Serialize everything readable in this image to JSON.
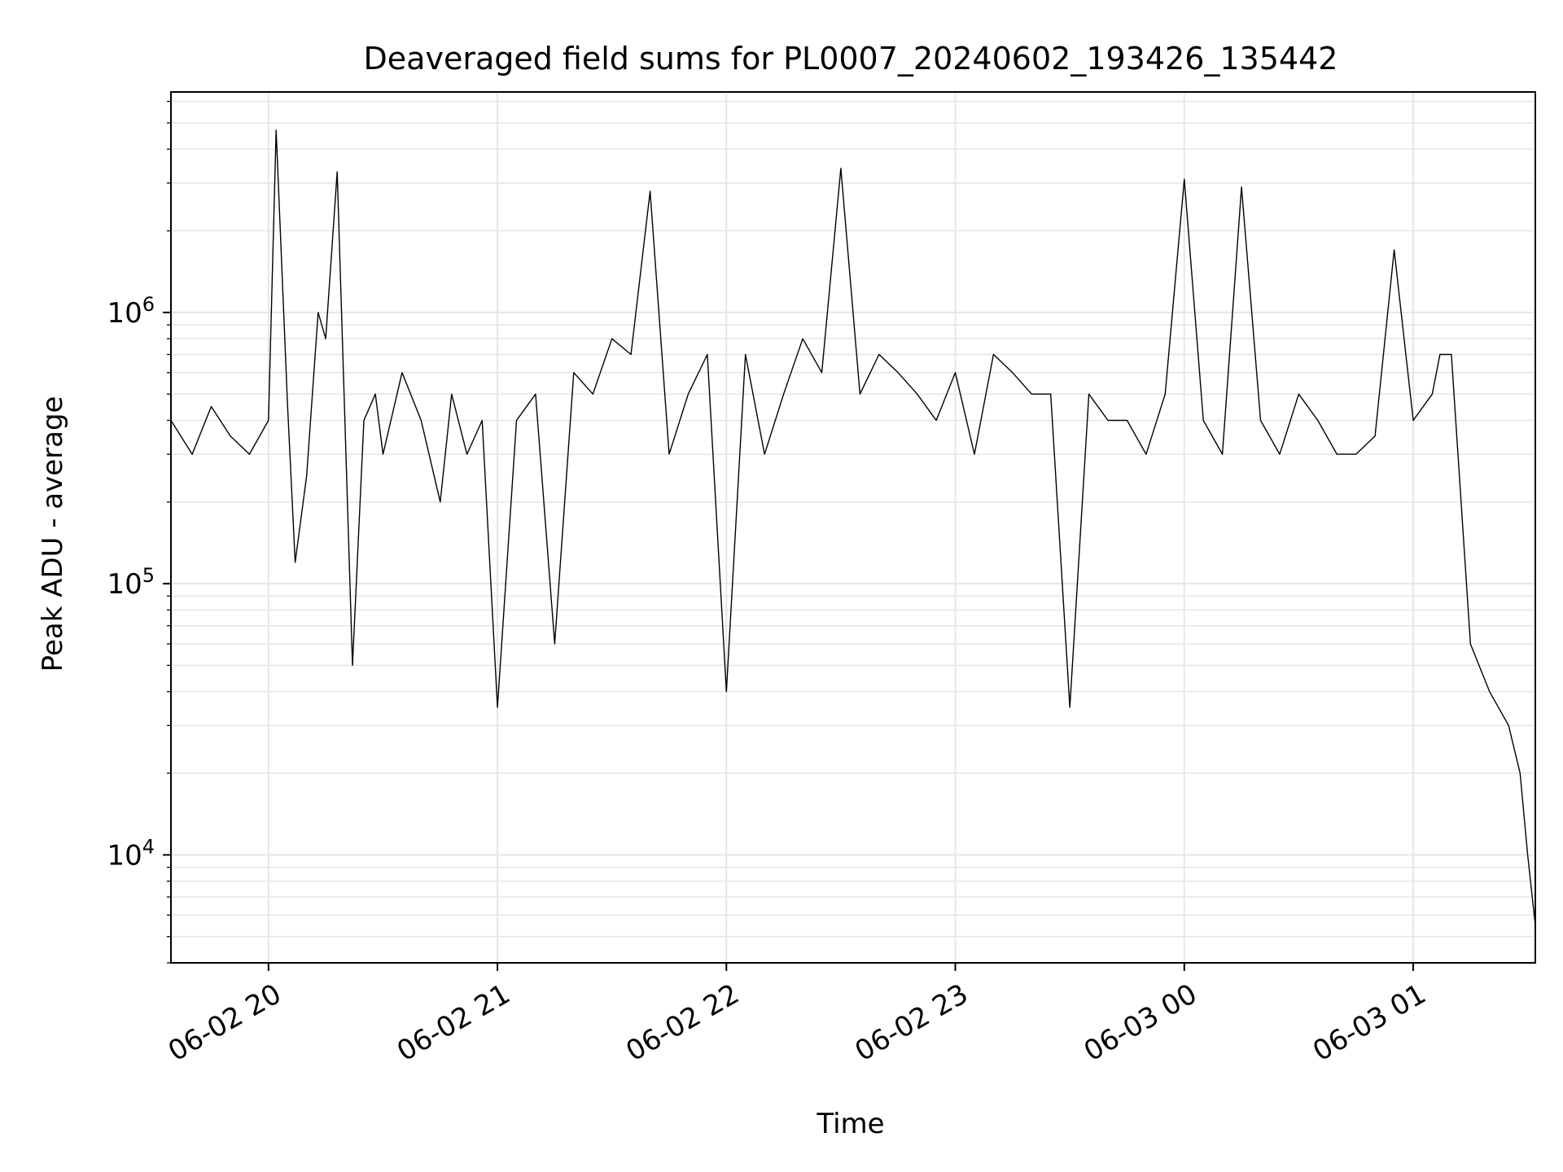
{
  "chart_data": {
    "type": "line",
    "title": "Deaveraged field sums for PL0007_20240602_193426_135442",
    "xlabel": "Time",
    "ylabel": "Peak ADU - average",
    "yscale": "log",
    "ylim": [
      4000,
      6500000
    ],
    "xlim": [
      "2024-06-02 19:34:26",
      "2024-06-03 01:32:00"
    ],
    "x_ticks": [
      {
        "label": "06-02 20",
        "time": "2024-06-02 20:00"
      },
      {
        "label": "06-02 21",
        "time": "2024-06-02 21:00"
      },
      {
        "label": "06-02 22",
        "time": "2024-06-02 22:00"
      },
      {
        "label": "06-02 23",
        "time": "2024-06-02 23:00"
      },
      {
        "label": "06-03 00",
        "time": "2024-06-03 00:00"
      },
      {
        "label": "06-03 01",
        "time": "2024-06-03 01:00"
      }
    ],
    "y_ticks": [
      {
        "base": "10",
        "exp": "4",
        "value": 10000
      },
      {
        "base": "10",
        "exp": "5",
        "value": 100000
      },
      {
        "base": "10",
        "exp": "6",
        "value": 1000000
      }
    ],
    "grid": true,
    "line_color": "#000000",
    "grid_color": "#e6e6e6",
    "series": [
      {
        "x": [
          "2024-06-02 19:34",
          "2024-06-02 19:40",
          "2024-06-02 19:45",
          "2024-06-02 19:50",
          "2024-06-02 19:55",
          "2024-06-02 20:00",
          "2024-06-02 20:02",
          "2024-06-02 20:05",
          "2024-06-02 20:07",
          "2024-06-02 20:10",
          "2024-06-02 20:13",
          "2024-06-02 20:15",
          "2024-06-02 20:18",
          "2024-06-02 20:22",
          "2024-06-02 20:25",
          "2024-06-02 20:28",
          "2024-06-02 20:30",
          "2024-06-02 20:35",
          "2024-06-02 20:40",
          "2024-06-02 20:45",
          "2024-06-02 20:48",
          "2024-06-02 20:52",
          "2024-06-02 20:56",
          "2024-06-02 21:00",
          "2024-06-02 21:05",
          "2024-06-02 21:10",
          "2024-06-02 21:15",
          "2024-06-02 21:20",
          "2024-06-02 21:25",
          "2024-06-02 21:30",
          "2024-06-02 21:35",
          "2024-06-02 21:40",
          "2024-06-02 21:45",
          "2024-06-02 21:50",
          "2024-06-02 21:55",
          "2024-06-02 22:00",
          "2024-06-02 22:05",
          "2024-06-02 22:10",
          "2024-06-02 22:15",
          "2024-06-02 22:20",
          "2024-06-02 22:25",
          "2024-06-02 22:30",
          "2024-06-02 22:35",
          "2024-06-02 22:40",
          "2024-06-02 22:45",
          "2024-06-02 22:50",
          "2024-06-02 22:55",
          "2024-06-02 23:00",
          "2024-06-02 23:05",
          "2024-06-02 23:10",
          "2024-06-02 23:15",
          "2024-06-02 23:20",
          "2024-06-02 23:25",
          "2024-06-02 23:30",
          "2024-06-02 23:35",
          "2024-06-02 23:40",
          "2024-06-02 23:45",
          "2024-06-02 23:50",
          "2024-06-02 23:55",
          "2024-06-03 00:00",
          "2024-06-03 00:05",
          "2024-06-03 00:10",
          "2024-06-03 00:15",
          "2024-06-03 00:20",
          "2024-06-03 00:25",
          "2024-06-03 00:30",
          "2024-06-03 00:35",
          "2024-06-03 00:40",
          "2024-06-03 00:45",
          "2024-06-03 00:50",
          "2024-06-03 00:55",
          "2024-06-03 01:00",
          "2024-06-03 01:05",
          "2024-06-03 01:07",
          "2024-06-03 01:10",
          "2024-06-03 01:15",
          "2024-06-03 01:20",
          "2024-06-03 01:25",
          "2024-06-03 01:28",
          "2024-06-03 01:30",
          "2024-06-03 01:32"
        ],
        "y": [
          400000,
          300000,
          450000,
          350000,
          300000,
          400000,
          4700000,
          450000,
          120000,
          250000,
          1000000,
          800000,
          3300000,
          50000,
          400000,
          500000,
          300000,
          600000,
          400000,
          200000,
          500000,
          300000,
          400000,
          35000,
          400000,
          500000,
          60000,
          600000,
          500000,
          800000,
          700000,
          2800000,
          300000,
          500000,
          700000,
          40000,
          700000,
          300000,
          500000,
          800000,
          600000,
          3400000,
          500000,
          700000,
          600000,
          500000,
          400000,
          600000,
          300000,
          700000,
          600000,
          500000,
          500000,
          35000,
          500000,
          400000,
          400000,
          300000,
          500000,
          3100000,
          400000,
          300000,
          2900000,
          400000,
          300000,
          500000,
          400000,
          300000,
          300000,
          350000,
          1700000,
          400000,
          500000,
          700000,
          700000,
          60000,
          40000,
          30000,
          20000,
          10000,
          5500
        ]
      }
    ]
  }
}
